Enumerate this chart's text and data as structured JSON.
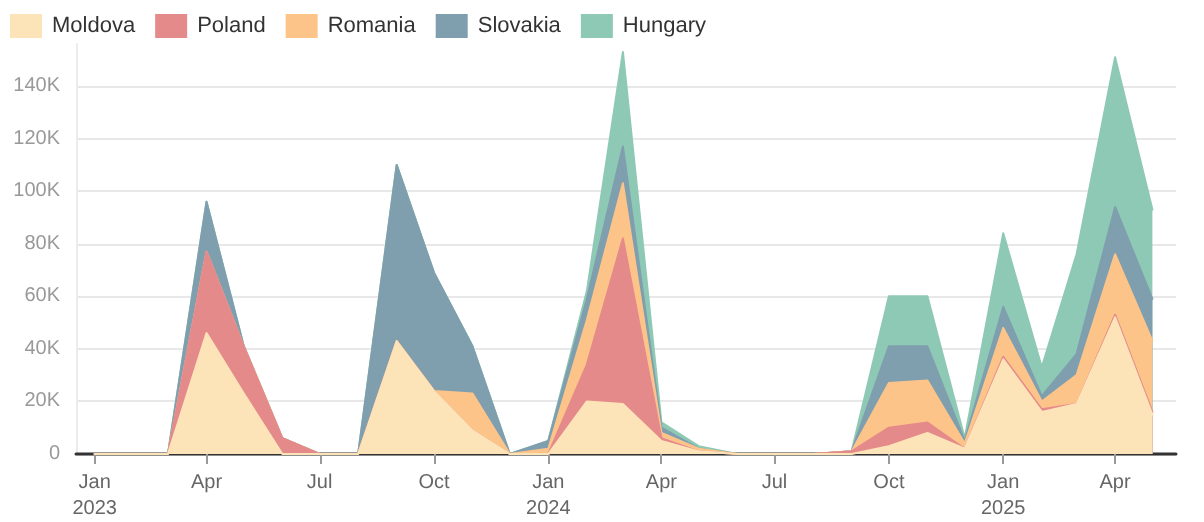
{
  "chart_data": {
    "type": "area",
    "stacked": true,
    "x": [
      "2023-01",
      "2023-02",
      "2023-03",
      "2023-04",
      "2023-05",
      "2023-06",
      "2023-07",
      "2023-08",
      "2023-09",
      "2023-10",
      "2023-11",
      "2023-12",
      "2024-01",
      "2024-02",
      "2024-03",
      "2024-04",
      "2024-05",
      "2024-06",
      "2024-07",
      "2024-08",
      "2024-09",
      "2024-10",
      "2024-11",
      "2024-12",
      "2025-01",
      "2025-02",
      "2025-03",
      "2025-04",
      "2025-05"
    ],
    "series": [
      {
        "name": "Moldova",
        "color": "#fde3b8",
        "values": [
          0,
          0,
          0,
          46000,
          23000,
          0,
          0,
          0,
          43000,
          24000,
          9000,
          0,
          0,
          20000,
          19000,
          5000,
          1000,
          0,
          0,
          0,
          0,
          3000,
          8000,
          2000,
          36000,
          16000,
          19000,
          52000,
          15000
        ]
      },
      {
        "name": "Poland",
        "color": "#e58a8a",
        "values": [
          0,
          0,
          0,
          31000,
          18000,
          6000,
          0,
          0,
          0,
          0,
          0,
          0,
          0,
          14000,
          63000,
          1000,
          0,
          0,
          0,
          0,
          1000,
          7000,
          4000,
          0,
          1000,
          1000,
          0,
          1000,
          1000
        ]
      },
      {
        "name": "Romania",
        "color": "#fdc48a",
        "values": [
          0,
          0,
          0,
          0,
          0,
          0,
          0,
          0,
          0,
          0,
          14000,
          0,
          2000,
          17000,
          21000,
          2000,
          1000,
          0,
          0,
          0,
          0,
          17000,
          16000,
          2000,
          11000,
          3000,
          11000,
          23000,
          27000
        ]
      },
      {
        "name": "Slovakia",
        "color": "#7f9fae",
        "values": [
          0,
          0,
          0,
          19000,
          0,
          0,
          0,
          0,
          67000,
          45000,
          18000,
          0,
          3000,
          8000,
          14000,
          2000,
          0,
          0,
          0,
          0,
          0,
          14000,
          13000,
          1000,
          8000,
          2000,
          8000,
          18000,
          16000
        ]
      },
      {
        "name": "Hungary",
        "color": "#8ec9b5",
        "values": [
          0,
          0,
          0,
          0,
          0,
          0,
          0,
          0,
          0,
          0,
          0,
          0,
          0,
          3000,
          36000,
          2000,
          1000,
          0,
          0,
          0,
          0,
          19000,
          19000,
          1000,
          28000,
          11000,
          38000,
          57000,
          34000
        ]
      }
    ],
    "xlim": [
      "2022-12-17",
      "2025-05-20"
    ],
    "xticks": [
      {
        "value": "2023-01",
        "label": "Jan\n2023"
      },
      {
        "value": "2023-04",
        "label": "Apr"
      },
      {
        "value": "2023-07",
        "label": "Jul"
      },
      {
        "value": "2023-10",
        "label": "Oct"
      },
      {
        "value": "2024-01",
        "label": "Jan\n2024"
      },
      {
        "value": "2024-04",
        "label": "Apr"
      },
      {
        "value": "2024-07",
        "label": "Jul"
      },
      {
        "value": "2024-10",
        "label": "Oct"
      },
      {
        "value": "2025-01",
        "label": "Jan\n2025"
      },
      {
        "value": "2025-04",
        "label": "Apr"
      }
    ],
    "ylim": [
      0,
      156000
    ],
    "yticks": [
      0,
      {
        "value": 20000,
        "label": "20K"
      },
      {
        "value": 40000,
        "label": "40K"
      },
      {
        "value": 60000,
        "label": "60K"
      },
      {
        "value": 80000,
        "label": "80K"
      },
      {
        "value": 100000,
        "label": "100K"
      },
      {
        "value": 120000,
        "label": "120K"
      },
      {
        "value": 140000,
        "label": "140K"
      }
    ],
    "grid": "y",
    "legend": "top left",
    "marker": "none",
    "line_style": "solid"
  }
}
